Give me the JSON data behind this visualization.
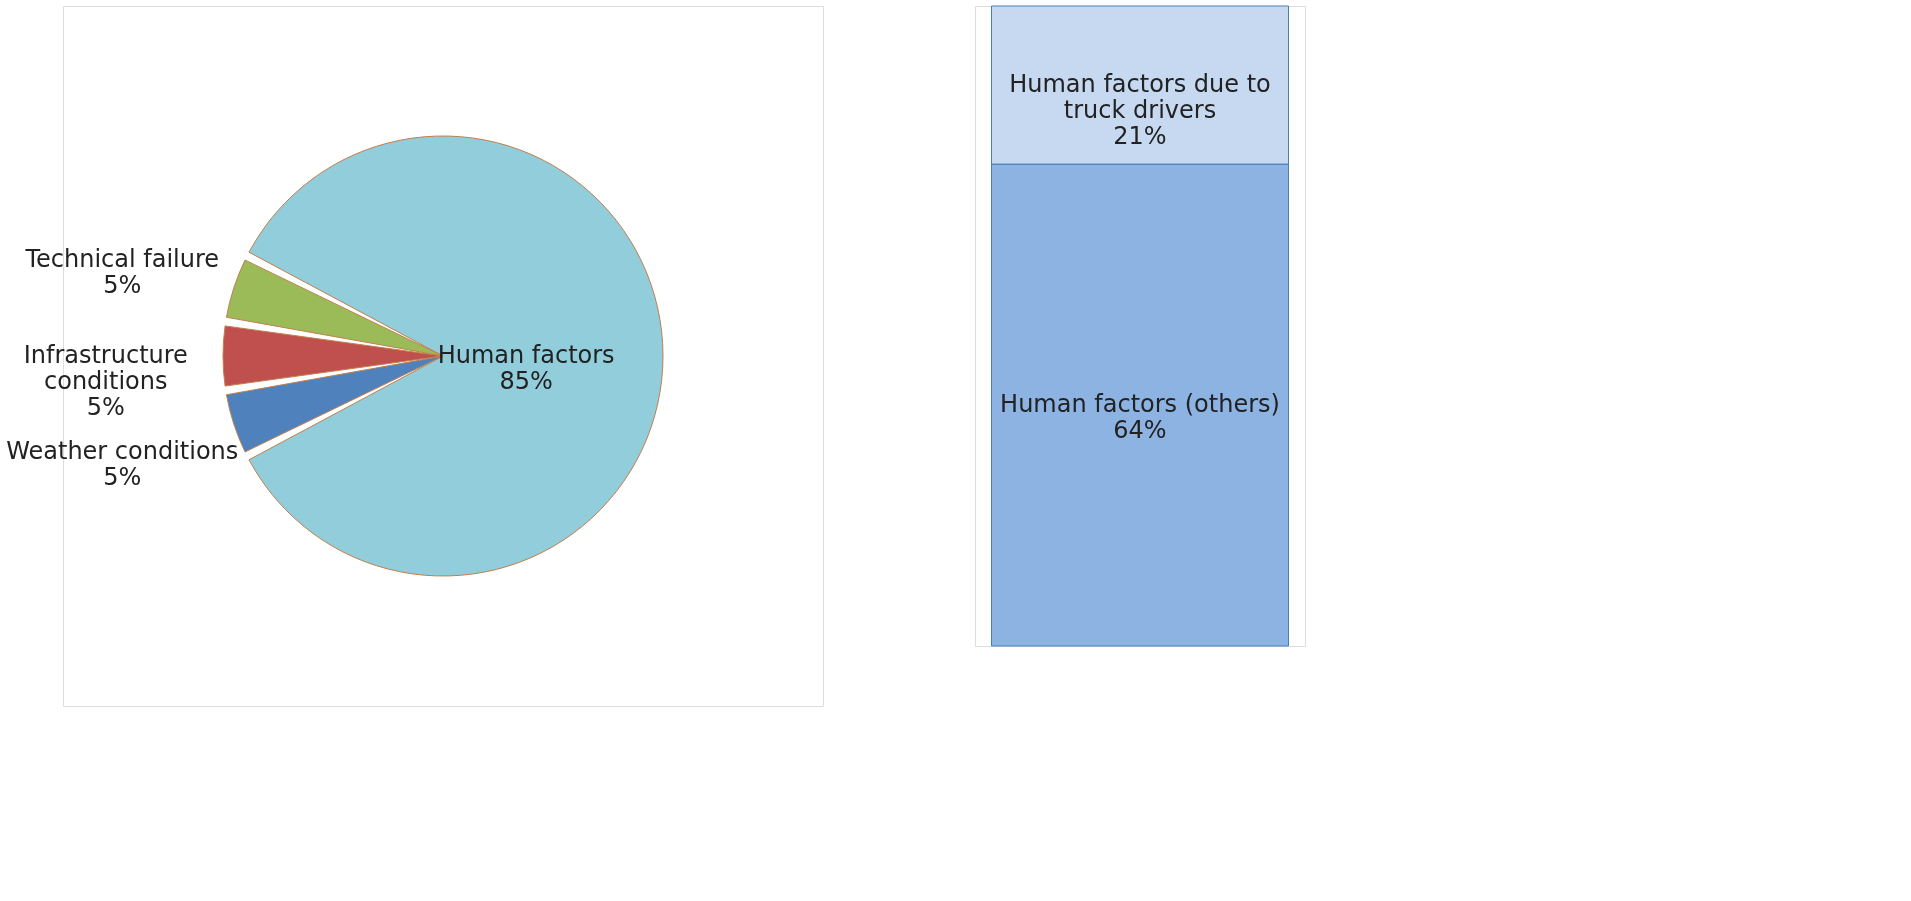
{
  "chart_data": [
    {
      "type": "pie",
      "categories": [
        "Human factors",
        "Weather conditions",
        "Infrastructure conditions",
        "Technical failure"
      ],
      "values": [
        85,
        5,
        5,
        5
      ],
      "value_labels": [
        "85%",
        "5%",
        "5%",
        "5%"
      ],
      "colors": [
        "#92cddc",
        "#4f81bd",
        "#c0504d",
        "#9bbb59"
      ]
    },
    {
      "type": "bar",
      "stacked": true,
      "categories": [
        null
      ],
      "series": [
        {
          "name": "Human factors (others)",
          "color": "#8db3e2",
          "values": [
            64
          ],
          "value_labels": [
            "64%"
          ]
        },
        {
          "name": "Human factors due to truck drivers",
          "color": "#c6d9f1",
          "values": [
            21
          ],
          "value_labels": [
            "21%"
          ]
        }
      ]
    }
  ]
}
